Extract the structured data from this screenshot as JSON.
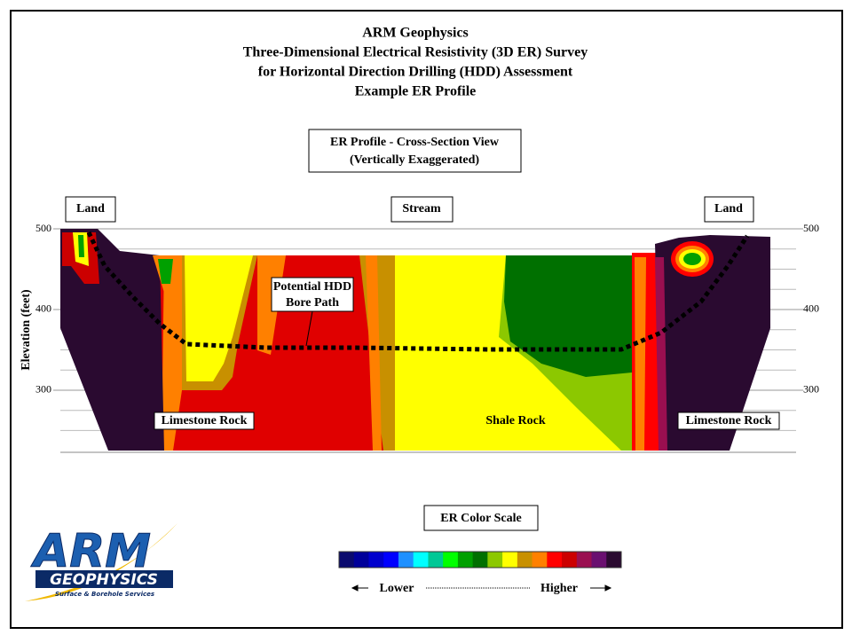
{
  "header": {
    "lines": [
      "ARM Geophysics",
      "Three-Dimensional Electrical Resistivity (3D ER) Survey",
      "for Horizontal Direction Drilling (HDD) Assessment",
      "Example ER Profile"
    ]
  },
  "view_box": {
    "lines": [
      "ER Profile  -  Cross-Section View",
      "(Vertically  Exaggerated)"
    ]
  },
  "location_labels": [
    "Land",
    "Stream",
    "Land"
  ],
  "profile": {
    "y_label": "Elevation (feet)",
    "ylim": [
      223,
      500
    ],
    "yticks": [
      300,
      400,
      500
    ],
    "minor_yticks": [
      250,
      275,
      325,
      350,
      375,
      425,
      450,
      475
    ],
    "annotation": [
      "Potential HDD",
      "Bore Path"
    ],
    "rock_labels": [
      "Limestone Rock",
      "Shale Rock",
      "Limestone Rock"
    ]
  },
  "color_scale": {
    "title": "ER Color Scale",
    "colors": [
      "#0a0a6e",
      "#00009a",
      "#0000cd",
      "#0000ff",
      "#1e90ff",
      "#00ffff",
      "#00c896",
      "#00ff00",
      "#00a000",
      "#007000",
      "#8cc800",
      "#ffff00",
      "#c89000",
      "#ff8000",
      "#ff0000",
      "#cc0000",
      "#9a0f50",
      "#6a1070",
      "#2a0a30"
    ],
    "low_label": "Lower",
    "high_label": "Higher"
  },
  "logo": {
    "name": "ARM",
    "subtitle": "GEOPHYSICS",
    "tagline": "Surface & Borehole Services"
  }
}
